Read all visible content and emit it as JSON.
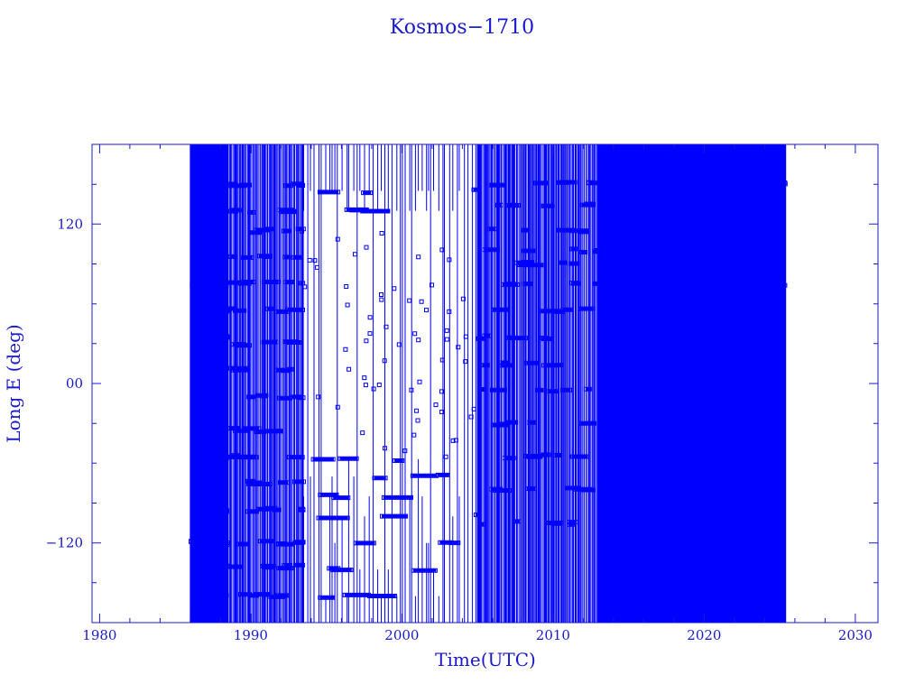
{
  "chart_data": {
    "type": "line",
    "title": "Kosmos−1710",
    "xlabel": "Time(UTC)",
    "ylabel": "Long E (deg)",
    "xlim": [
      1979.5,
      2031.5
    ],
    "ylim": [
      -180,
      180
    ],
    "x_ticks": [
      1980,
      1990,
      2000,
      2010,
      2020,
      2030
    ],
    "x_tick_labels": [
      "1980",
      "1990",
      "2000",
      "2010",
      "2020",
      "2030"
    ],
    "y_ticks": [
      -120,
      0,
      120
    ],
    "y_tick_labels": [
      "−120",
      "00",
      "120"
    ],
    "grid": false,
    "legend": "none",
    "series_color": "#0000ff",
    "axis_color": "#1a1acd",
    "data_start": 1986.0,
    "data_end": 2025.4,
    "notes_visible": "dense longitude trace wrapping between -180 and 180 deg",
    "regimes": [
      {
        "from": 1986.0,
        "to": 1988.5,
        "density": "very_dense",
        "stations": [
          150,
          130,
          75,
          55,
          35,
          10,
          -55,
          -95,
          -120,
          -138,
          -160
        ]
      },
      {
        "from": 1988.5,
        "to": 1993.5,
        "density": "dense",
        "stations": [
          150,
          130,
          115,
          95,
          75,
          55,
          30,
          10,
          -10,
          -35,
          -55,
          -75,
          -95,
          -120,
          -138,
          -160
        ]
      },
      {
        "from": 1993.5,
        "to": 2005.0,
        "density": "sparse_center",
        "stations": [
          145,
          130,
          -57,
          -70,
          -85,
          -100,
          -120,
          -140,
          -160
        ]
      },
      {
        "from": 2005.0,
        "to": 2013.0,
        "density": "dense",
        "stations": [
          150,
          135,
          115,
          100,
          90,
          75,
          55,
          35,
          15,
          -5,
          -30,
          -55,
          -80,
          -105
        ]
      },
      {
        "from": 2013.0,
        "to": 2025.4,
        "density": "very_dense",
        "stations": [
          150,
          130,
          115,
          95,
          75,
          55,
          35,
          15,
          -5,
          -30,
          -55,
          -80,
          -105,
          -130,
          -160
        ]
      }
    ]
  }
}
